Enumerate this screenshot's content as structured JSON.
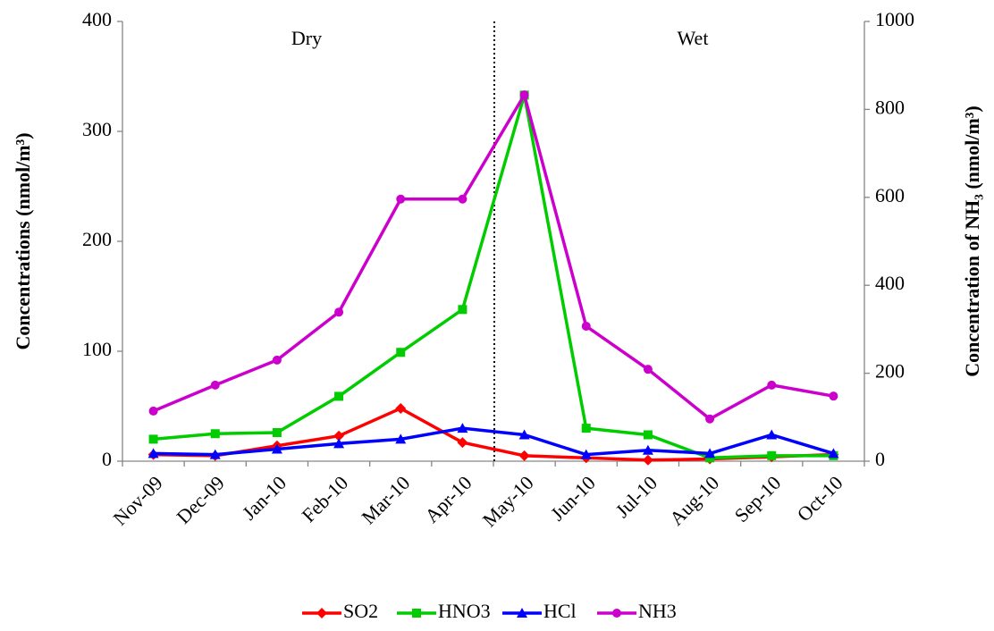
{
  "chart_data": {
    "type": "line",
    "y_label": "Concentrations (nmol/m³)",
    "y2_label": "Concentration of NH₃ (nmol/m³)",
    "annotations": [
      "Dry",
      "Wet"
    ],
    "categories": [
      "Nov-09",
      "Dec-09",
      "Jan-10",
      "Feb-10",
      "Mar-10",
      "Apr-10",
      "May-10",
      "Jun-10",
      "Jul-10",
      "Aug-10",
      "Sep-10",
      "Oct-10"
    ],
    "series": [
      {
        "name": "SO2",
        "color": "#ff0000",
        "marker": "diamond",
        "values": [
          6,
          5,
          14,
          23,
          48,
          17,
          5,
          3,
          1,
          2,
          4,
          6
        ]
      },
      {
        "name": "HNO3",
        "color": "#00cc00",
        "marker": "square",
        "values": [
          20,
          25,
          26,
          59,
          99,
          138,
          333,
          30,
          24,
          3,
          5,
          5
        ]
      },
      {
        "name": "HCl",
        "color": "#0000ff",
        "marker": "triangle",
        "values": [
          7,
          6,
          11,
          16,
          20,
          30,
          24,
          6,
          10,
          7,
          24,
          7
        ]
      },
      {
        "name": "NH3",
        "color": "#cc00cc",
        "marker": "circle",
        "axis": "y2",
        "values": [
          114,
          173,
          230,
          339,
          596,
          596,
          833,
          307,
          209,
          96,
          173,
          148
        ]
      }
    ],
    "ylim": [
      0,
      400
    ],
    "yticks": [
      0,
      100,
      200,
      300,
      400
    ],
    "y2lim": [
      0,
      1000
    ],
    "y2ticks": [
      0,
      200,
      400,
      600,
      800,
      1000
    ],
    "legend": "bottom"
  }
}
